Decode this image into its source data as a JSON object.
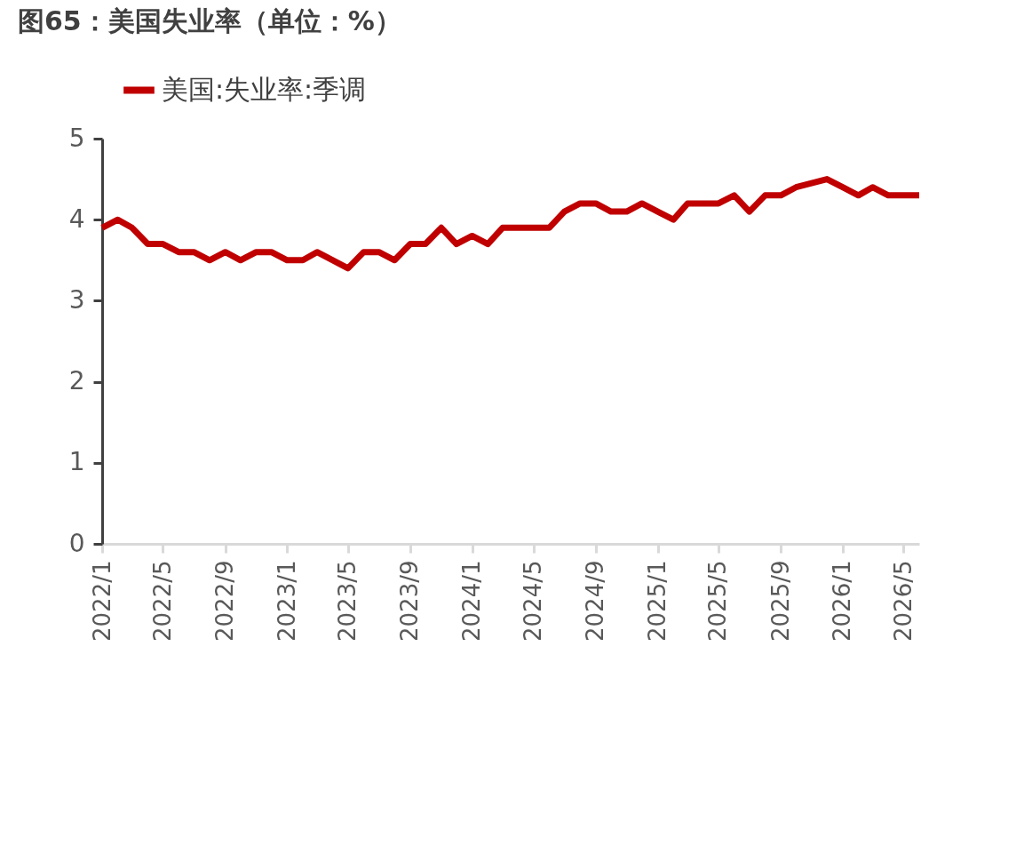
{
  "chart_data": {
    "type": "line",
    "title": "图65：美国失业率（单位：%）",
    "x": [
      "2022-01",
      "2022-02",
      "2022-03",
      "2022-04",
      "2022-05",
      "2022-06",
      "2022-07",
      "2022-08",
      "2022-09",
      "2022-10",
      "2022-11",
      "2022-12",
      "2023-01",
      "2023-02",
      "2023-03",
      "2023-04",
      "2023-05",
      "2023-06",
      "2023-07",
      "2023-08",
      "2023-09",
      "2023-10",
      "2023-11",
      "2023-12",
      "2024-01",
      "2024-02",
      "2024-03",
      "2024-04",
      "2024-05",
      "2024-06",
      "2024-07",
      "2024-08",
      "2024-09",
      "2024-10",
      "2024-11",
      "2024-12",
      "2025-01",
      "2025-02",
      "2025-03",
      "2025-04",
      "2025-05",
      "2025-06",
      "2025-07",
      "2025-08",
      "2025-09",
      "2025-10",
      "2025-12",
      "2026-01",
      "2026-02",
      "2026-03",
      "2026-04",
      "2026-05",
      "2026-06"
    ],
    "series": [
      {
        "name": "美国:失业率:季调",
        "color": "#c00000",
        "values": [
          3.9,
          4.0,
          3.9,
          3.7,
          3.7,
          3.6,
          3.6,
          3.5,
          3.6,
          3.5,
          3.6,
          3.6,
          3.5,
          3.5,
          3.6,
          3.5,
          3.4,
          3.6,
          3.6,
          3.5,
          3.7,
          3.7,
          3.9,
          3.7,
          3.8,
          3.7,
          3.9,
          3.9,
          3.9,
          3.9,
          4.1,
          4.2,
          4.2,
          4.1,
          4.1,
          4.2,
          4.1,
          4.0,
          4.2,
          4.2,
          4.2,
          4.3,
          4.1,
          4.3,
          4.3,
          4.4,
          4.5,
          4.4,
          4.3,
          4.4,
          4.3,
          4.3,
          4.3
        ]
      }
    ],
    "xlim": [
      "2022-01",
      "2026-06"
    ],
    "xticks": [
      {
        "value": "2022-01",
        "label": "2022/1"
      },
      {
        "value": "2022-05",
        "label": "2022/5"
      },
      {
        "value": "2022-09",
        "label": "2022/9"
      },
      {
        "value": "2023-01",
        "label": "2023/1"
      },
      {
        "value": "2023-05",
        "label": "2023/5"
      },
      {
        "value": "2023-09",
        "label": "2023/9"
      },
      {
        "value": "2024-01",
        "label": "2024/1"
      },
      {
        "value": "2024-05",
        "label": "2024/5"
      },
      {
        "value": "2024-09",
        "label": "2024/9"
      },
      {
        "value": "2025-01",
        "label": "2025/1"
      },
      {
        "value": "2025-05",
        "label": "2025/5"
      },
      {
        "value": "2025-09",
        "label": "2025/9"
      },
      {
        "value": "2026-01",
        "label": "2026/1"
      },
      {
        "value": "2026-05",
        "label": "2026/5"
      }
    ],
    "ylim": [
      0,
      5
    ],
    "yticks": [
      0,
      1,
      2,
      3,
      4,
      5
    ],
    "grid": false,
    "legend": "top",
    "marker": "none",
    "line_style": "solid"
  }
}
